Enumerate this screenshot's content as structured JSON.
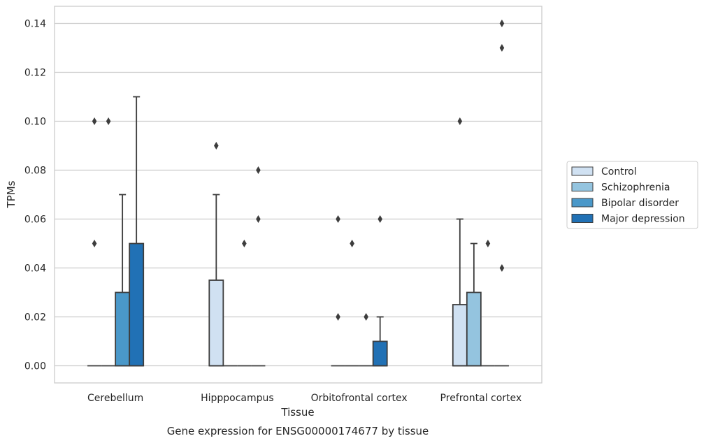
{
  "chart_data": {
    "type": "box",
    "caption": "Gene expression for ENSG00000174677 by tissue",
    "xlabel": "Tissue",
    "ylabel": "TPMs",
    "ylim": [
      -0.007,
      0.147
    ],
    "yticks": [
      0.0,
      0.02,
      0.04,
      0.06,
      0.08,
      0.1,
      0.12,
      0.14
    ],
    "ytick_labels": [
      "0.00",
      "0.02",
      "0.04",
      "0.06",
      "0.08",
      "0.10",
      "0.12",
      "0.14"
    ],
    "grid": "horizontal",
    "legend_position": "right",
    "categories": [
      "Cerebellum",
      "Hipppocampus",
      "Orbitofrontal cortex",
      "Prefrontal cortex"
    ],
    "series": [
      {
        "name": "Control",
        "color": "#d0e1f2",
        "boxes": [
          {
            "q1": 0.0,
            "median": 0.0,
            "q3": 0.0,
            "whisker_low": 0.0,
            "whisker_high": 0.0,
            "outliers": [
              0.05,
              0.1
            ]
          },
          {
            "q1": 0.0,
            "median": 0.0,
            "q3": 0.035,
            "whisker_low": 0.0,
            "whisker_high": 0.07,
            "outliers": [
              0.09
            ]
          },
          {
            "q1": 0.0,
            "median": 0.0,
            "q3": 0.0,
            "whisker_low": 0.0,
            "whisker_high": 0.0,
            "outliers": [
              0.02,
              0.06
            ]
          },
          {
            "q1": 0.0,
            "median": 0.0,
            "q3": 0.025,
            "whisker_low": 0.0,
            "whisker_high": 0.06,
            "outliers": [
              0.1
            ]
          }
        ]
      },
      {
        "name": "Schizophrenia",
        "color": "#94c4df",
        "boxes": [
          {
            "q1": 0.0,
            "median": 0.0,
            "q3": 0.0,
            "whisker_low": 0.0,
            "whisker_high": 0.0,
            "outliers": [
              0.1
            ]
          },
          {
            "q1": 0.0,
            "median": 0.0,
            "q3": 0.0,
            "whisker_low": 0.0,
            "whisker_high": 0.0,
            "outliers": []
          },
          {
            "q1": 0.0,
            "median": 0.0,
            "q3": 0.0,
            "whisker_low": 0.0,
            "whisker_high": 0.0,
            "outliers": [
              0.05
            ]
          },
          {
            "q1": 0.0,
            "median": 0.0,
            "q3": 0.03,
            "whisker_low": 0.0,
            "whisker_high": 0.05,
            "outliers": []
          }
        ]
      },
      {
        "name": "Bipolar disorder",
        "color": "#4a98c9",
        "boxes": [
          {
            "q1": 0.0,
            "median": 0.0,
            "q3": 0.03,
            "whisker_low": 0.0,
            "whisker_high": 0.07,
            "outliers": []
          },
          {
            "q1": 0.0,
            "median": 0.0,
            "q3": 0.0,
            "whisker_low": 0.0,
            "whisker_high": 0.0,
            "outliers": [
              0.05
            ]
          },
          {
            "q1": 0.0,
            "median": 0.0,
            "q3": 0.0,
            "whisker_low": 0.0,
            "whisker_high": 0.0,
            "outliers": [
              0.02
            ]
          },
          {
            "q1": 0.0,
            "median": 0.0,
            "q3": 0.0,
            "whisker_low": 0.0,
            "whisker_high": 0.0,
            "outliers": [
              0.05
            ]
          }
        ]
      },
      {
        "name": "Major depression",
        "color": "#2171b5",
        "boxes": [
          {
            "q1": 0.0,
            "median": 0.0,
            "q3": 0.05,
            "whisker_low": 0.0,
            "whisker_high": 0.11,
            "outliers": []
          },
          {
            "q1": 0.0,
            "median": 0.0,
            "q3": 0.0,
            "whisker_low": 0.0,
            "whisker_high": 0.0,
            "outliers": [
              0.06,
              0.08
            ]
          },
          {
            "q1": 0.0,
            "median": 0.0,
            "q3": 0.01,
            "whisker_low": 0.0,
            "whisker_high": 0.02,
            "outliers": [
              0.06
            ]
          },
          {
            "q1": 0.0,
            "median": 0.0,
            "q3": 0.0,
            "whisker_low": 0.0,
            "whisker_high": 0.0,
            "outliers": [
              0.04,
              0.13,
              0.14
            ]
          }
        ]
      }
    ]
  }
}
